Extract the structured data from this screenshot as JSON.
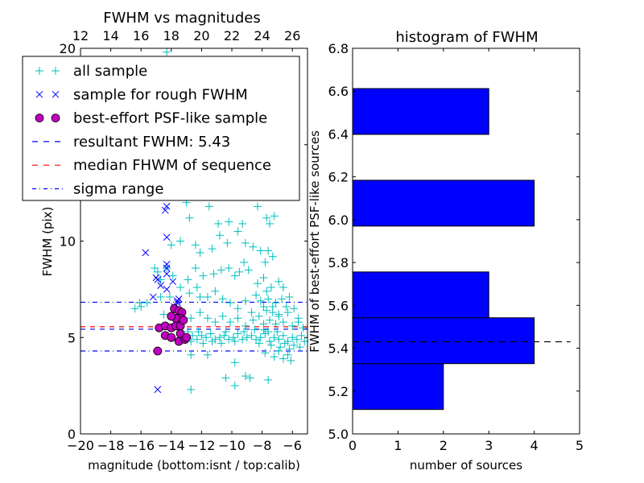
{
  "chart_data": [
    {
      "type": "scatter",
      "title": "FWHM vs magnitudes",
      "xlabel": "magnitude (bottom:isnt / top:calib)",
      "ylabel": "FWHM (pix)",
      "xlim": [
        -20,
        -5
      ],
      "ylim": [
        0,
        20
      ],
      "xticks": [
        -20,
        -18,
        -16,
        -14,
        -12,
        -10,
        -8,
        -6
      ],
      "xtick_labels": [
        "−20",
        "−18",
        "−16",
        "−14",
        "−12",
        "−10",
        "−8",
        "−6"
      ],
      "yticks": [
        0,
        5,
        10,
        15,
        20
      ],
      "ytick_labels": [
        "0",
        "5",
        "10",
        "15",
        "20"
      ],
      "top_xticks": [
        12,
        14,
        16,
        18,
        20,
        22,
        24,
        26
      ],
      "top_xtick_labels": [
        "12",
        "14",
        "16",
        "18",
        "20",
        "22",
        "24",
        "26"
      ],
      "top_offset": 32,
      "grid": false,
      "legend_position": "upper-left",
      "legend": [
        {
          "label": "all sample",
          "marker": "plus",
          "color": "#00bfbf"
        },
        {
          "label": "sample for rough FWHM",
          "marker": "x",
          "color": "#0000ff"
        },
        {
          "label": "best-effort PSF-like sample",
          "marker": "circle",
          "color": "#bf00bf"
        },
        {
          "label": "resultant FWHM: 5.43",
          "marker": "dashed",
          "color": "#0000ff"
        },
        {
          "label": "median FHWM of sequence",
          "marker": "dashed",
          "color": "#ff0000"
        },
        {
          "label": "sigma range",
          "marker": "dashdot",
          "color": "#0000ff"
        }
      ],
      "hlines": [
        {
          "name": "resultant-fwhm",
          "y": 5.43,
          "color": "#0000ff",
          "style": "dashed"
        },
        {
          "name": "median-fwhm",
          "y": 5.56,
          "color": "#ff0000",
          "style": "dashed"
        },
        {
          "name": "sigma-upper",
          "y": 6.83,
          "color": "#0000ff",
          "style": "dashdot"
        },
        {
          "name": "sigma-lower",
          "y": 4.3,
          "color": "#0000ff",
          "style": "dashdot"
        }
      ],
      "series": [
        {
          "name": "all sample",
          "marker": "plus",
          "color": "#00bfbf",
          "points": [
            [
              -14.3,
              19.8
            ],
            [
              -13.0,
              12.0
            ],
            [
              -12.8,
              11.2
            ],
            [
              -11.5,
              11.8
            ],
            [
              -10.9,
              10.9
            ],
            [
              -10.2,
              11.0
            ],
            [
              -9.6,
              10.5
            ],
            [
              -9.3,
              10.9
            ],
            [
              -8.3,
              11.8
            ],
            [
              -7.7,
              11.2
            ],
            [
              -7.5,
              10.9
            ],
            [
              -7.2,
              11.3
            ],
            [
              -14.0,
              9.8
            ],
            [
              -13.4,
              10.0
            ],
            [
              -12.4,
              9.8
            ],
            [
              -12.1,
              9.4
            ],
            [
              -11.3,
              9.6
            ],
            [
              -10.8,
              10.3
            ],
            [
              -10.3,
              9.9
            ],
            [
              -9.1,
              9.9
            ],
            [
              -8.6,
              9.7
            ],
            [
              -8.1,
              9.5
            ],
            [
              -7.6,
              9.5
            ],
            [
              -7.3,
              9.2
            ],
            [
              -7.8,
              8.9
            ],
            [
              -15.1,
              8.6
            ],
            [
              -14.9,
              8.4
            ],
            [
              -14.7,
              8.0
            ],
            [
              -14.3,
              8.6
            ],
            [
              -13.9,
              8.2
            ],
            [
              -12.9,
              8.0
            ],
            [
              -12.4,
              8.6
            ],
            [
              -11.9,
              8.2
            ],
            [
              -11.2,
              8.3
            ],
            [
              -10.7,
              8.5
            ],
            [
              -10.2,
              8.6
            ],
            [
              -9.8,
              8.2
            ],
            [
              -9.5,
              8.4
            ],
            [
              -9.2,
              8.9
            ],
            [
              -8.9,
              8.5
            ],
            [
              -8.3,
              7.8
            ],
            [
              -7.9,
              8.1
            ],
            [
              -7.4,
              7.6
            ],
            [
              -6.9,
              7.9
            ],
            [
              -6.6,
              7.6
            ],
            [
              -14.7,
              7.1
            ],
            [
              -14.1,
              7.1
            ],
            [
              -13.4,
              7.6
            ],
            [
              -12.8,
              7.3
            ],
            [
              -12.3,
              7.6
            ],
            [
              -12.1,
              7.1
            ],
            [
              -11.6,
              7.1
            ],
            [
              -11.1,
              7.4
            ],
            [
              -10.6,
              7.0
            ],
            [
              -10.1,
              6.8
            ],
            [
              -9.6,
              6.5
            ],
            [
              -9.1,
              6.9
            ],
            [
              -8.7,
              6.3
            ],
            [
              -8.4,
              7.2
            ],
            [
              -8.1,
              6.9
            ],
            [
              -7.9,
              6.6
            ],
            [
              -7.7,
              7.4
            ],
            [
              -7.6,
              7.0
            ],
            [
              -7.3,
              6.3
            ],
            [
              -7.1,
              6.8
            ],
            [
              -6.9,
              6.2
            ],
            [
              -6.7,
              7.0
            ],
            [
              -6.4,
              6.6
            ],
            [
              -6.2,
              7.1
            ],
            [
              -5.9,
              6.5
            ],
            [
              -5.6,
              6.0
            ],
            [
              -16.4,
              6.5
            ],
            [
              -16.1,
              6.8
            ],
            [
              -15.6,
              6.8
            ],
            [
              -14.5,
              6.2
            ],
            [
              -13.5,
              6.3
            ],
            [
              -12.7,
              6.0
            ],
            [
              -12.1,
              6.3
            ],
            [
              -11.6,
              6.0
            ],
            [
              -11.1,
              5.8
            ],
            [
              -10.6,
              6.1
            ],
            [
              -10.1,
              5.8
            ],
            [
              -9.6,
              6.0
            ],
            [
              -9.1,
              5.6
            ],
            [
              -8.6,
              5.9
            ],
            [
              -8.2,
              6.1
            ],
            [
              -7.9,
              5.7
            ],
            [
              -7.7,
              6.4
            ],
            [
              -7.5,
              5.9
            ],
            [
              -7.3,
              6.6
            ],
            [
              -7.1,
              5.7
            ],
            [
              -6.9,
              6.1
            ],
            [
              -6.6,
              5.8
            ],
            [
              -6.3,
              6.3
            ],
            [
              -6.0,
              5.6
            ],
            [
              -5.6,
              5.8
            ],
            [
              -5.3,
              5.5
            ],
            [
              -12.9,
              5.3
            ],
            [
              -12.6,
              5.1
            ],
            [
              -12.3,
              4.9
            ],
            [
              -12.0,
              5.1
            ],
            [
              -11.7,
              5.0
            ],
            [
              -11.4,
              5.2
            ],
            [
              -11.1,
              4.9
            ],
            [
              -10.8,
              5.0
            ],
            [
              -10.5,
              5.1
            ],
            [
              -10.2,
              4.9
            ],
            [
              -9.9,
              5.0
            ],
            [
              -9.6,
              5.2
            ],
            [
              -9.3,
              4.9
            ],
            [
              -9.0,
              5.0
            ],
            [
              -8.7,
              5.1
            ],
            [
              -8.4,
              4.9
            ],
            [
              -8.1,
              5.0
            ],
            [
              -7.8,
              5.2
            ],
            [
              -7.5,
              4.8
            ],
            [
              -7.2,
              5.0
            ],
            [
              -6.9,
              4.9
            ],
            [
              -6.6,
              5.1
            ],
            [
              -6.3,
              4.8
            ],
            [
              -6.0,
              5.0
            ],
            [
              -5.7,
              4.9
            ],
            [
              -5.4,
              5.1
            ],
            [
              -12.7,
              4.8
            ],
            [
              -12.2,
              5.3
            ],
            [
              -11.9,
              4.7
            ],
            [
              -11.3,
              4.8
            ],
            [
              -10.7,
              4.7
            ],
            [
              -10.4,
              5.3
            ],
            [
              -9.8,
              4.8
            ],
            [
              -9.2,
              5.3
            ],
            [
              -8.5,
              5.4
            ],
            [
              -8.2,
              4.7
            ],
            [
              -7.9,
              5.4
            ],
            [
              -7.6,
              5.3
            ],
            [
              -7.4,
              4.6
            ],
            [
              -7.0,
              5.3
            ],
            [
              -6.8,
              4.5
            ],
            [
              -6.5,
              4.7
            ],
            [
              -6.2,
              4.4
            ],
            [
              -5.9,
              4.6
            ],
            [
              -5.5,
              4.5
            ],
            [
              -5.2,
              4.8
            ],
            [
              -7.8,
              4.2
            ],
            [
              -7.2,
              4.0
            ],
            [
              -6.9,
              4.3
            ],
            [
              -6.6,
              3.9
            ],
            [
              -6.3,
              4.1
            ],
            [
              -6.1,
              3.8
            ],
            [
              -12.7,
              4.1
            ],
            [
              -11.6,
              4.1
            ],
            [
              -9.8,
              3.7
            ],
            [
              -10.4,
              2.9
            ],
            [
              -9.1,
              3.0
            ],
            [
              -8.8,
              2.9
            ],
            [
              -7.6,
              2.8
            ],
            [
              -9.8,
              2.5
            ],
            [
              -12.7,
              2.3
            ],
            [
              -16.0,
              6.6
            ]
          ]
        },
        {
          "name": "sample for rough FWHM",
          "marker": "x",
          "color": "#0000ff",
          "points": [
            [
              -14.3,
              11.8
            ],
            [
              -14.4,
              11.6
            ],
            [
              -14.3,
              10.2
            ],
            [
              -15.7,
              9.4
            ],
            [
              -14.3,
              8.6
            ],
            [
              -14.3,
              8.8
            ],
            [
              -14.3,
              8.3
            ],
            [
              -15.0,
              8.1
            ],
            [
              -14.9,
              8.0
            ],
            [
              -14.7,
              7.7
            ],
            [
              -14.3,
              7.5
            ],
            [
              -13.9,
              7.9
            ],
            [
              -15.2,
              7.1
            ],
            [
              -13.5,
              7.0
            ],
            [
              -13.6,
              6.9
            ],
            [
              -13.6,
              6.8
            ],
            [
              -13.8,
              6.6
            ],
            [
              -14.9,
              2.3
            ]
          ]
        },
        {
          "name": "best-effort PSF-like sample",
          "marker": "circle",
          "color": "#bf00bf",
          "points": [
            [
              -14.9,
              4.3
            ],
            [
              -14.8,
              5.5
            ],
            [
              -14.4,
              5.6
            ],
            [
              -14.0,
              5.5
            ],
            [
              -13.7,
              5.6
            ],
            [
              -13.4,
              5.6
            ],
            [
              -14.4,
              5.1
            ],
            [
              -14.0,
              5.0
            ],
            [
              -13.4,
              5.2
            ],
            [
              -13.5,
              4.8
            ],
            [
              -13.1,
              4.9
            ],
            [
              -13.0,
              5.0
            ],
            [
              -13.8,
              6.5
            ],
            [
              -13.5,
              6.4
            ],
            [
              -13.3,
              6.3
            ],
            [
              -13.4,
              6.0
            ],
            [
              -13.7,
              6.0
            ],
            [
              -13.2,
              5.9
            ],
            [
              -14.0,
              6.1
            ]
          ]
        }
      ]
    },
    {
      "type": "bar",
      "orientation": "horizontal",
      "title": "histogram of FWHM",
      "xlabel": "number of sources",
      "ylabel": "FWHM of best-effort PSF-like sources",
      "xlim": [
        0,
        5
      ],
      "ylim": [
        5.0,
        6.8
      ],
      "xticks": [
        0,
        1,
        2,
        3,
        4,
        5
      ],
      "xtick_labels": [
        "0",
        "1",
        "2",
        "3",
        "4",
        "5"
      ],
      "yticks": [
        5.0,
        5.2,
        5.4,
        5.6,
        5.8,
        6.0,
        6.2,
        6.4,
        6.6,
        6.8
      ],
      "ytick_labels": [
        "5.0",
        "5.2",
        "5.4",
        "5.6",
        "5.8",
        "6.0",
        "6.2",
        "6.4",
        "6.6",
        "6.8"
      ],
      "grid": false,
      "color": "#0000ff",
      "bins": [
        {
          "low": 5.114,
          "high": 5.328,
          "count": 2
        },
        {
          "low": 5.328,
          "high": 5.542,
          "count": 4
        },
        {
          "low": 5.542,
          "high": 5.756,
          "count": 3
        },
        {
          "low": 5.756,
          "high": 5.97,
          "count": 0
        },
        {
          "low": 5.97,
          "high": 6.184,
          "count": 4
        },
        {
          "low": 6.184,
          "high": 6.398,
          "count": 0
        },
        {
          "low": 6.398,
          "high": 6.612,
          "count": 3
        }
      ],
      "hline": {
        "y": 5.43,
        "xmax": 4.8,
        "color": "#000000",
        "style": "dashed"
      }
    }
  ]
}
